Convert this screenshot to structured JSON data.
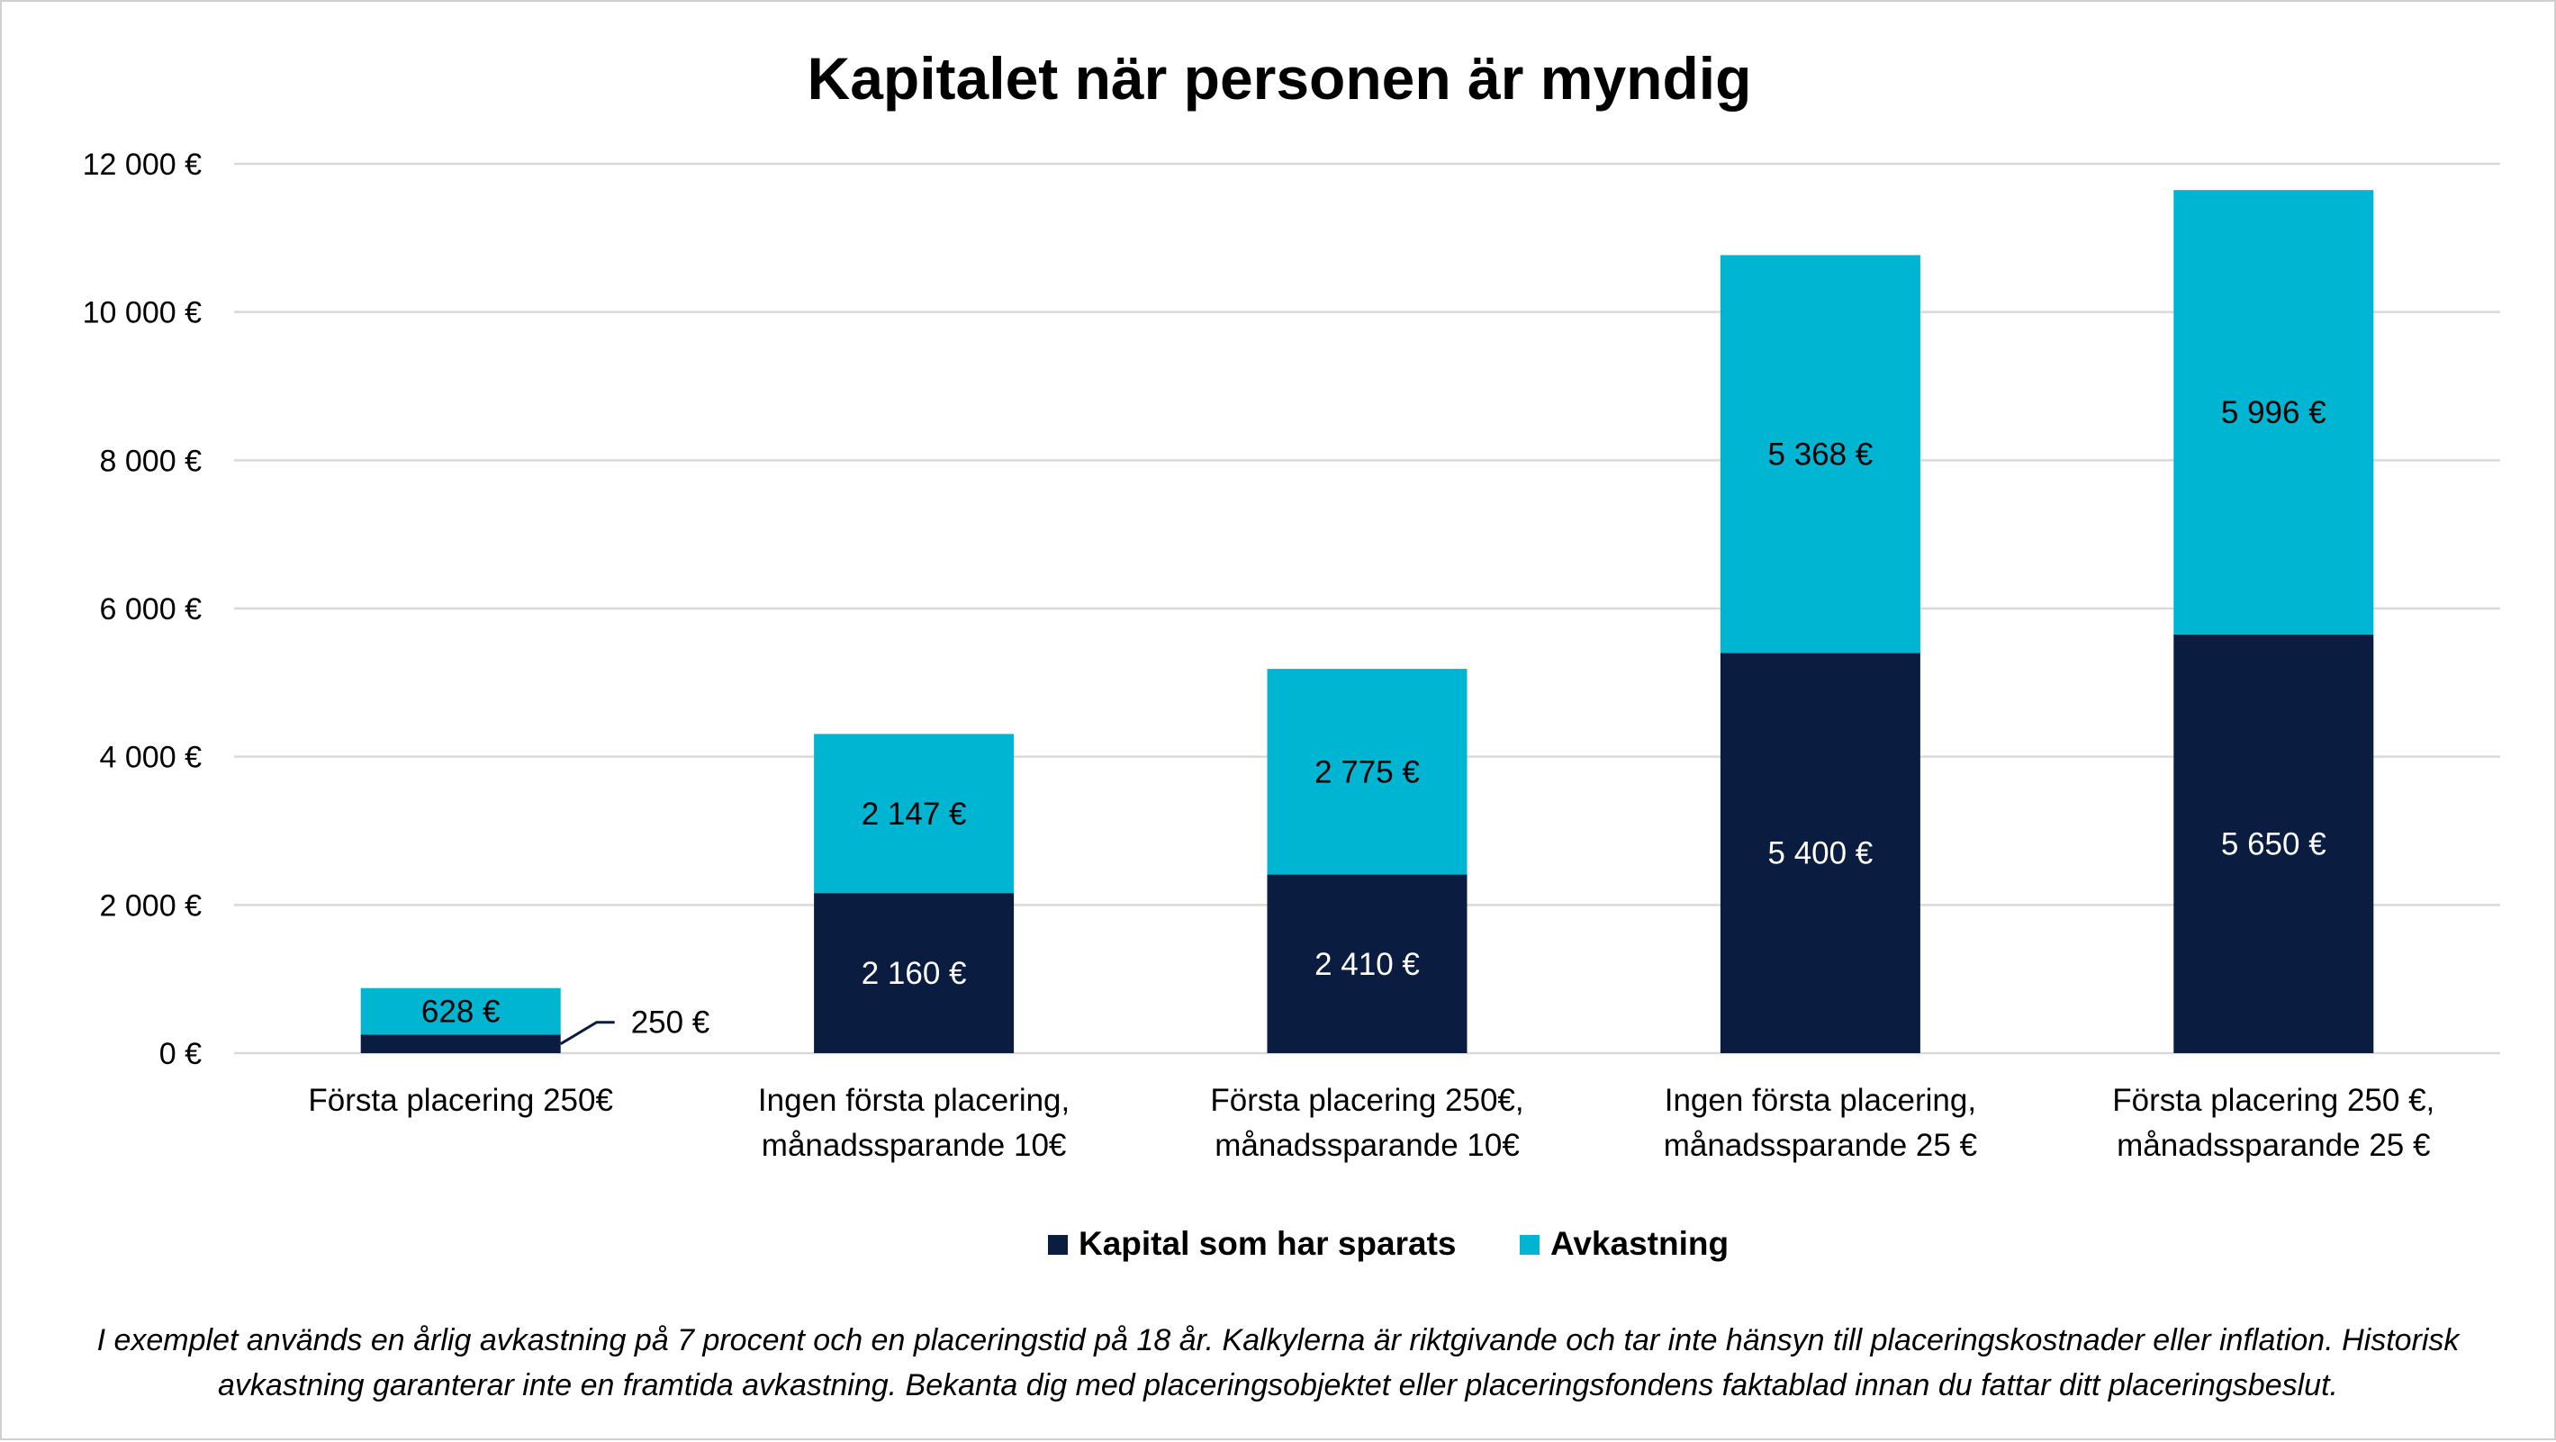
{
  "chart_data": {
    "type": "bar",
    "stacked": true,
    "title": "Kapitalet när personen är myndig",
    "categories": [
      [
        "Första placering 250€"
      ],
      [
        "Ingen första placering,",
        "månadssparande 10€"
      ],
      [
        "Första placering 250€,",
        "månadssparande 10€"
      ],
      [
        "Ingen första placering,",
        "månadssparande 25 €"
      ],
      [
        "Första placering 250 €,",
        "månadssparande 25 €"
      ]
    ],
    "series": [
      {
        "name": "Kapital som har sparats",
        "color": "#0a1c3f",
        "values": [
          250,
          2160,
          2410,
          5400,
          5650
        ],
        "labels": [
          "250 €",
          "2 160 €",
          "2 410 €",
          "5 400 €",
          "5 650 €"
        ]
      },
      {
        "name": "Avkastning",
        "color": "#00b5d1",
        "values": [
          628,
          2147,
          2775,
          5368,
          5996
        ],
        "labels": [
          "628 €",
          "2 147 €",
          "2 775 €",
          "5 368 €",
          "5 996 €"
        ]
      }
    ],
    "ylim": [
      0,
      12000
    ],
    "yticks": [
      0,
      2000,
      4000,
      6000,
      8000,
      10000,
      12000
    ],
    "ytick_labels": [
      "0 €",
      "2 000 €",
      "4 000 €",
      "6 000 €",
      "8 000 €",
      "10 000 €",
      "12 000 €"
    ],
    "grid": true,
    "legend_position": "bottom"
  },
  "footnote": "I exemplet används en årlig avkastning på 7 procent och en placeringstid på 18 år. Kalkylerna är riktgivande och tar inte hänsyn till placeringskostnader eller inflation. Historisk avkastning garanterar inte en framtida avkastning. Bekanta dig med placeringsobjektet eller placeringsfondens faktablad innan du fattar ditt placeringsbeslut."
}
